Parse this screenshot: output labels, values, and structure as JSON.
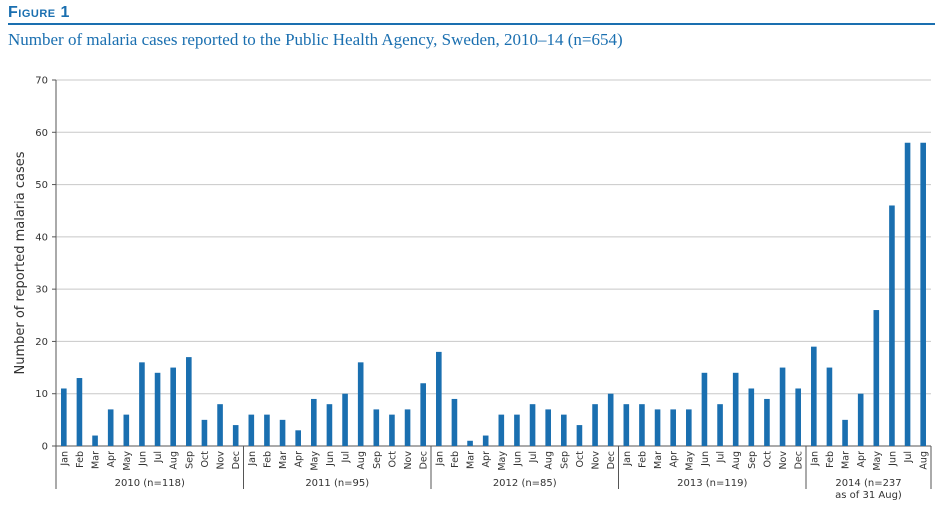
{
  "figure_label": "Figure 1",
  "title": "Number of malaria cases reported to the Public Health Agency, Sweden, 2010–14 (n=654)",
  "chart_data": {
    "type": "bar",
    "ylabel": "Number of reported malaria cases",
    "xlabel": "",
    "ylim": [
      0,
      70
    ],
    "yticks": [
      0,
      10,
      20,
      30,
      40,
      50,
      60,
      70
    ],
    "grid": true,
    "bar_color": "#1a6fb0",
    "groups": [
      {
        "label": "2010 (n=118)",
        "months": [
          "Jan",
          "Feb",
          "Mar",
          "Apr",
          "May",
          "Jun",
          "Jul",
          "Aug",
          "Sep",
          "Oct",
          "Nov",
          "Dec"
        ],
        "values": [
          11,
          13,
          2,
          7,
          6,
          16,
          14,
          15,
          17,
          5,
          8,
          4
        ]
      },
      {
        "label": "2011 (n=95)",
        "months": [
          "Jan",
          "Feb",
          "Mar",
          "Apr",
          "May",
          "Jun",
          "Jul",
          "Aug",
          "Sep",
          "Oct",
          "Nov",
          "Dec"
        ],
        "values": [
          6,
          6,
          5,
          3,
          9,
          8,
          10,
          16,
          7,
          6,
          7,
          12
        ]
      },
      {
        "label": "2012 (n=85)",
        "months": [
          "Jan",
          "Feb",
          "Mar",
          "Apr",
          "May",
          "Jun",
          "Jul",
          "Aug",
          "Sep",
          "Oct",
          "Nov",
          "Dec"
        ],
        "values": [
          18,
          9,
          1,
          2,
          6,
          6,
          8,
          7,
          6,
          4,
          8,
          10
        ]
      },
      {
        "label": "2013 (n=119)",
        "months": [
          "Jan",
          "Feb",
          "Mar",
          "Apr",
          "May",
          "Jun",
          "Jul",
          "Aug",
          "Sep",
          "Oct",
          "Nov",
          "Dec"
        ],
        "values": [
          8,
          8,
          7,
          7,
          7,
          14,
          8,
          14,
          11,
          9,
          15,
          11
        ]
      },
      {
        "label": "2014 (n=237",
        "label2": "as of 31 Aug)",
        "months": [
          "Jan",
          "Feb",
          "Mar",
          "Apr",
          "May",
          "Jun",
          "Jul",
          "Aug"
        ],
        "values": [
          19,
          15,
          5,
          10,
          26,
          46,
          58,
          58
        ]
      }
    ]
  }
}
